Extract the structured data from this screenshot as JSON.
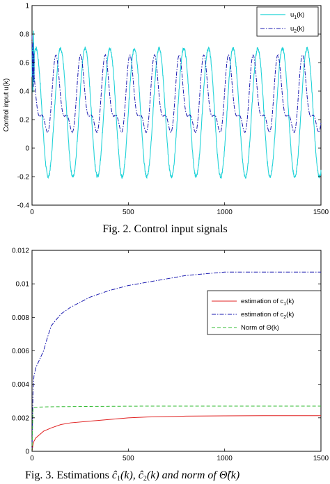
{
  "chart_data": [
    {
      "type": "line",
      "caption": "Fig. 2.   Control input signals",
      "ylabel": "Control input u(k)",
      "xlim": [
        0,
        1500
      ],
      "ylim": [
        -0.4,
        1
      ],
      "xticks": [
        "0",
        "500",
        "1000",
        "1500"
      ],
      "yticks": [
        "-0.4",
        "-0.2",
        "0",
        "0.2",
        "0.4",
        "0.6",
        "0.8",
        "1"
      ],
      "grid": false,
      "legend_position": "top-right",
      "series": [
        {
          "legend_base": "u",
          "legend_sub": "1",
          "legend_tail": "(k)",
          "color": "#22d3d8",
          "style": "solid",
          "period": 128,
          "center": 0.25,
          "amplitude": 0.45,
          "phase_peak": 20
        },
        {
          "legend_base": "u",
          "legend_sub": "2",
          "legend_tail": "(k)",
          "color": "#1a1ab0",
          "style": "dashdot",
          "period": 128,
          "center": 0.33,
          "amplitude": 0.3,
          "phase_peak": 0
        }
      ]
    },
    {
      "type": "line",
      "caption_parts": [
        "Fig. 3.   Estimations ",
        "ĉ",
        "1",
        "(k), ",
        "ĉ",
        "2",
        "(k) and norm of ",
        "Θ̂",
        "(k)"
      ],
      "xlim": [
        0,
        1500
      ],
      "ylim": [
        0,
        0.012
      ],
      "xticks": [
        "0",
        "500",
        "1000",
        "1500"
      ],
      "yticks": [
        "0",
        "0.002",
        "0.004",
        "0.006",
        "0.008",
        "0.01",
        "0.012"
      ],
      "grid": false,
      "legend_position": "right",
      "series": [
        {
          "legend_base": "estimation of c",
          "legend_sub": "1",
          "legend_tail": "(k)",
          "color": "#e02020",
          "style": "solid",
          "x": [
            0,
            5,
            10,
            20,
            40,
            60,
            100,
            150,
            200,
            300,
            400,
            500,
            600,
            800,
            1000,
            1200,
            1500
          ],
          "y": [
            0,
            0.0004,
            0.0006,
            0.0008,
            0.001,
            0.0012,
            0.0014,
            0.0016,
            0.0017,
            0.0018,
            0.0019,
            0.002,
            0.00205,
            0.0021,
            0.00212,
            0.00213,
            0.00213
          ]
        },
        {
          "legend_base": "estimation of c",
          "legend_sub": "2",
          "legend_tail": "(k)",
          "color": "#1a1ab0",
          "style": "dashdot",
          "x": [
            0,
            5,
            10,
            20,
            40,
            60,
            80,
            100,
            150,
            200,
            300,
            400,
            500,
            600,
            700,
            800,
            900,
            1000,
            1200,
            1500
          ],
          "y": [
            0,
            0.0035,
            0.0045,
            0.005,
            0.0055,
            0.006,
            0.0068,
            0.0075,
            0.0082,
            0.0086,
            0.0092,
            0.0096,
            0.0099,
            0.0101,
            0.0103,
            0.0105,
            0.0106,
            0.0107,
            0.0107,
            0.0107
          ]
        },
        {
          "legend_base": "Norm of ",
          "legend_sub": "",
          "legend_tail": "Θ(k)",
          "color": "#33bb33",
          "style": "dashed",
          "x": [
            0,
            5,
            10,
            30,
            100,
            300,
            600,
            1000,
            1500
          ],
          "y": [
            0,
            0.0026,
            0.00262,
            0.00264,
            0.00266,
            0.00268,
            0.0027,
            0.0027,
            0.0027
          ]
        }
      ]
    }
  ]
}
